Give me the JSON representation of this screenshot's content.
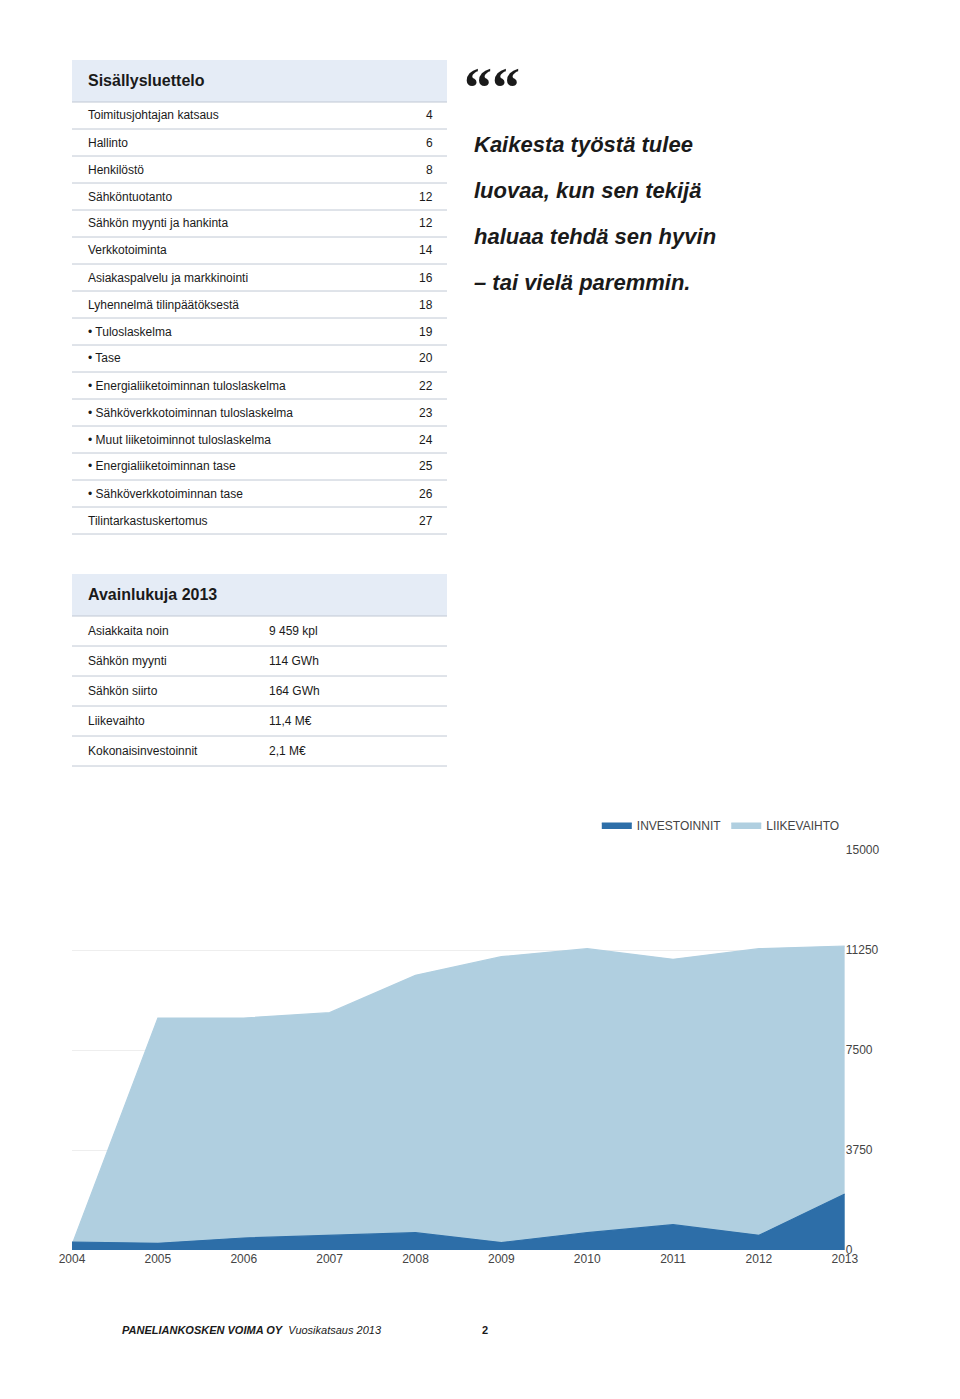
{
  "chart_data": {
    "type": "area",
    "x": [
      2004,
      2005,
      2006,
      2007,
      2008,
      2009,
      2010,
      2011,
      2012,
      2013
    ],
    "series": [
      {
        "name": "LIIKEVAIHTO",
        "color": "#b0cfe0",
        "values": [
          200,
          8700,
          8700,
          8900,
          10300,
          11000,
          11300,
          10900,
          11300,
          11400
        ]
      },
      {
        "name": "INVESTOINNIT",
        "color": "#2d6ea8",
        "values": [
          300,
          250,
          450,
          550,
          650,
          280,
          650,
          950,
          550,
          2100
        ]
      }
    ],
    "xlim": [
      2004,
      2013
    ],
    "xticks": [
      2004,
      2005,
      2006,
      2007,
      2008,
      2009,
      2010,
      2011,
      2012,
      2013
    ],
    "ylim": [
      0,
      15000
    ],
    "yticks": [
      0,
      3750,
      7500,
      11250,
      15000
    ],
    "grid": true,
    "legend": "top right",
    "annotations": [
      [
        [
          "Sisällysluettelo"
        ],
        [
          "Toimitusjohtajan katsaus",
          "4"
        ],
        [
          "Hallinto",
          "6"
        ],
        [
          "Henkilöstö",
          "8"
        ],
        [
          "Sähköntuotanto",
          "12"
        ],
        [
          "Sähkön myynti ja hankinta",
          "12"
        ],
        [
          "Verkkotoiminta",
          "14"
        ],
        [
          "Asiakaspalvelu ja markkinointi",
          "16"
        ],
        [
          "Lyhennelmä tilinpäätöksestä",
          "18"
        ],
        [
          "• Tuloslaskelma",
          "19"
        ],
        [
          "• Tase",
          "20"
        ],
        [
          "• Energialiiketoiminnan tuloslaskelma",
          "22"
        ],
        [
          "• Sähköverkkotoiminnan tuloslaskelma",
          "23"
        ],
        [
          "• Muut liiketoiminnot tuloslaskelma",
          "24"
        ],
        [
          "• Energialiiketoiminnan tase",
          "25"
        ],
        [
          "• Sähköverkkotoiminnan tase",
          "26"
        ],
        [
          "Tilintarkastuskertomus",
          "27"
        ]
      ],
      [
        [
          "““"
        ],
        [
          "Kaikesta työstä tulee"
        ],
        [
          "luovaa, kun sen tekijä"
        ],
        [
          "haluaa tehdä sen hyvin"
        ],
        [
          "– tai vielä paremmin."
        ]
      ],
      [
        [
          "Avainlukuja 2013"
        ],
        [
          "Asiakkaita noin",
          "9 459 kpl"
        ],
        [
          "Sähkön myynti",
          "114 GWh"
        ],
        [
          "Sähkön siirto",
          "164 GWh"
        ],
        [
          "Liikevaihto",
          "11,4 M€"
        ],
        [
          "Kokonaisinvestoinnit",
          "2,1 M€"
        ]
      ],
      [
        [
          "PANELIANKOSKEN VOIMA OY",
          "Vuosikatsaus 2013",
          "2"
        ]
      ]
    ]
  }
}
